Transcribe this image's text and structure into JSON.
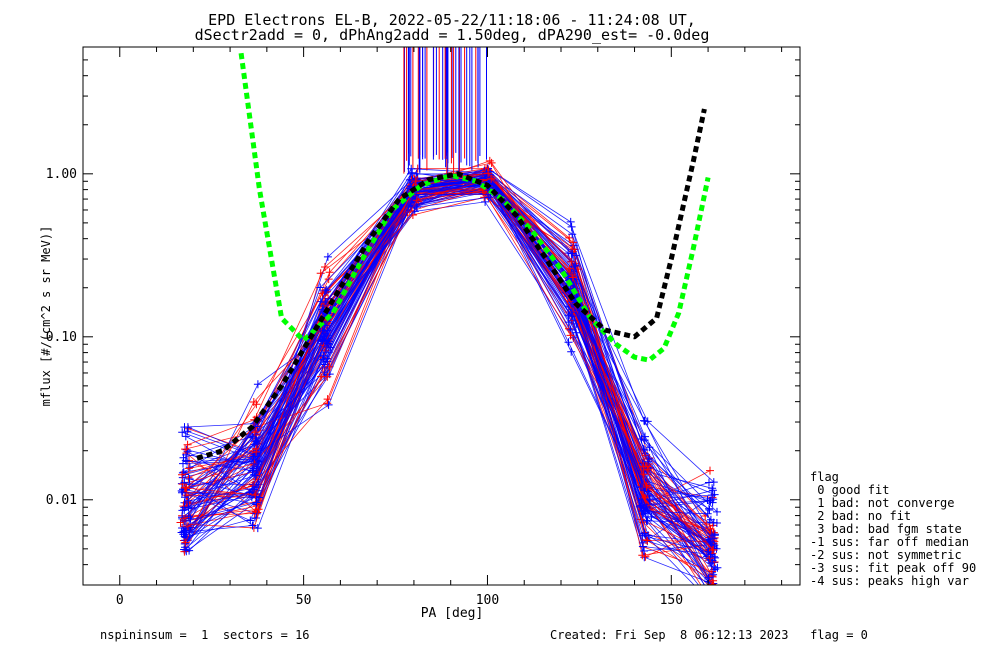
{
  "chart_data": {
    "type": "line",
    "title": "EPD Electrons EL-B, 2022-05-22/11:18:06 - 11:24:08 UT,",
    "subtitle": "dSectr2add = 0, dPhAng2add = 1.50deg, dPA290_est=  -0.0deg",
    "xlabel": "PA [deg]",
    "ylabel": "mflux [#/(cm^2 s sr MeV)]",
    "xlim": [
      -10,
      185
    ],
    "ylim": [
      0.003,
      6.0
    ],
    "yscale": "log",
    "x_ticks": [
      0,
      50,
      100,
      150
    ],
    "x_tick_labels": [
      "0",
      "50",
      "100",
      "150"
    ],
    "y_ticks": [
      0.01,
      0.1,
      1.0
    ],
    "y_tick_labels": [
      "0.01",
      "0.10",
      "1.00"
    ],
    "pa_bins": [
      18,
      37,
      56,
      80,
      100,
      123,
      143,
      161
    ],
    "profile": [
      0.01,
      0.016,
      0.11,
      0.78,
      0.88,
      0.19,
      0.011,
      0.005
    ],
    "series": [
      {
        "name": "",
        "color": "#0000ff",
        "x": [
          18,
          37,
          56,
          80,
          100,
          123,
          143,
          161
        ],
        "values": [
          0.01,
          0.016,
          0.11,
          0.78,
          0.88,
          0.19,
          0.011,
          0.005
        ]
      },
      {
        "name": "",
        "color": "#ff0000",
        "x": [
          18,
          37,
          56,
          80,
          100,
          123,
          143,
          161
        ],
        "values": [
          0.01,
          0.016,
          0.11,
          0.78,
          0.88,
          0.19,
          0.011,
          0.005
        ]
      },
      {
        "name": "",
        "color": "#00ff00",
        "dashed": true,
        "x": [
          33,
          38,
          44,
          50,
          58,
          66,
          74,
          82,
          90,
          97,
          104,
          112,
          120,
          128,
          135,
          140,
          144,
          148,
          152,
          156,
          160
        ],
        "values": [
          5.5,
          0.8,
          0.13,
          0.095,
          0.14,
          0.3,
          0.6,
          0.85,
          0.98,
          0.9,
          0.7,
          0.45,
          0.26,
          0.13,
          0.09,
          0.075,
          0.072,
          0.085,
          0.14,
          0.35,
          0.95
        ]
      },
      {
        "name": "",
        "color": "#000000",
        "dashed": true,
        "x": [
          21,
          28,
          36,
          44,
          52,
          60,
          68,
          76,
          84,
          92,
          100,
          108,
          116,
          124,
          132,
          140,
          146,
          150,
          153,
          156,
          159
        ],
        "values": [
          0.018,
          0.02,
          0.028,
          0.05,
          0.1,
          0.2,
          0.4,
          0.7,
          0.92,
          1.0,
          0.85,
          0.55,
          0.3,
          0.16,
          0.11,
          0.1,
          0.13,
          0.3,
          0.6,
          1.2,
          2.5
        ]
      }
    ],
    "legend_position": "right",
    "grid": false
  },
  "legend": {
    "title": "flag",
    "items": [
      " 0 good fit",
      " 1 bad: not converge",
      " 2 bad: no fit",
      " 3 bad: bad fgm state",
      "-1 sus: far off median",
      "-2 sus: not symmetric",
      "-3 sus: fit peak off 90",
      "-4 sus: peaks high var"
    ]
  },
  "footer": {
    "left": "nspininsum =  1  sectors = 16",
    "right": "Created: Fri Sep  8 06:12:13 2023   flag = 0"
  }
}
